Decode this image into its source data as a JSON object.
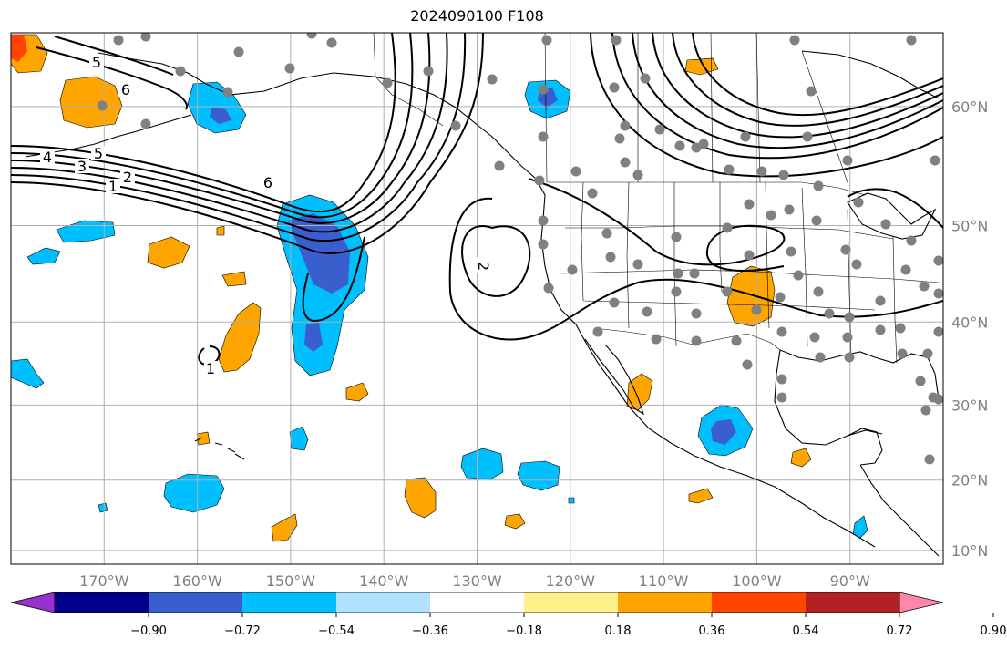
{
  "title": "2024090100 F108",
  "map": {
    "lon_min": -180,
    "lon_max": -80,
    "lat_min": 8,
    "lat_max": 65,
    "grid_lons": [
      -170,
      -160,
      -150,
      -140,
      -130,
      -120,
      -110,
      -100,
      -90
    ],
    "grid_lats": [
      10,
      20,
      30,
      40,
      50,
      60
    ],
    "lon_tick_labels": [
      "170°W",
      "160°W",
      "150°W",
      "140°W",
      "130°W",
      "120°W",
      "110°W",
      "100°W",
      "90°W"
    ],
    "lat_tick_labels": [
      "10°N",
      "20°N",
      "30°N",
      "40°N",
      "50°N",
      "60°N"
    ],
    "contour_labels": [
      "5",
      "6",
      "4",
      "3",
      "5",
      "2",
      "1",
      "6",
      "2",
      "1"
    ],
    "station_marker_color": "#808080"
  },
  "colorbar": {
    "colors": [
      "#9932cc",
      "#00008b",
      "#3a5fcd",
      "#00bfff",
      "#b0e2ff",
      "#ffffff",
      "#fff08b",
      "#ffa500",
      "#ff4500",
      "#b22222",
      "#ff88aa"
    ],
    "labels": [
      "−0.90",
      "−0.72",
      "−0.54",
      "−0.36",
      "−0.18",
      "0.18",
      "0.36",
      "0.54",
      "0.72",
      "0.90"
    ]
  }
}
